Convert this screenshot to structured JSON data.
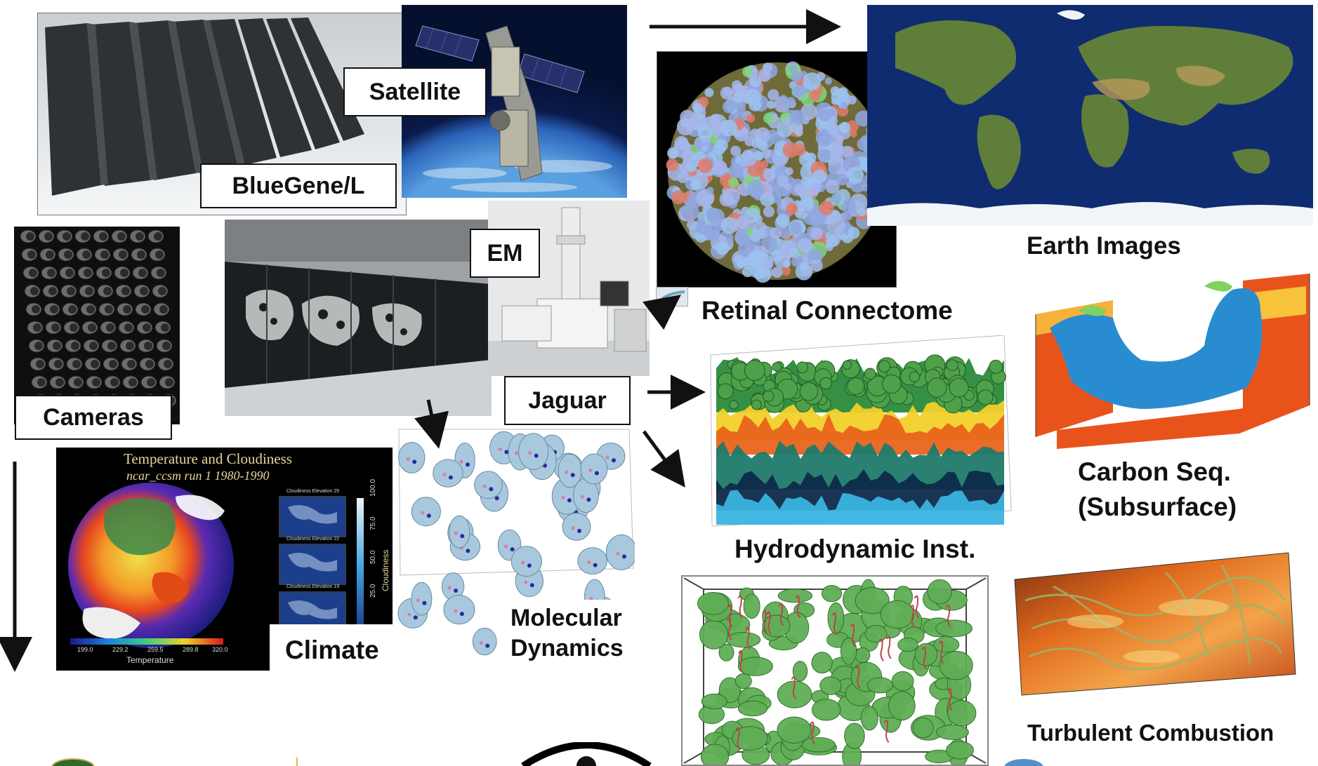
{
  "labels": {
    "bluegene": "BlueGene/L",
    "satellite": "Satellite",
    "em": "EM",
    "cameras": "Cameras",
    "jaguar": "Jaguar",
    "retinal": "Retinal Connectome",
    "earth": "Earth Images",
    "carbon_line1": "Carbon Seq.",
    "carbon_line2": "(Subsurface)",
    "hydro": "Hydrodynamic Inst.",
    "climate": "Climate",
    "molecular_line1": "Molecular",
    "molecular_line2": "Dynamics",
    "turbulent": "Turbulent Combustion"
  },
  "climate_panel": {
    "title": "Temperature and Cloudiness",
    "subtitle": "ncar_ccsm run 1 1980-1990",
    "maps": [
      "Cloudiness Elevation 25",
      "Cloudiness Elevation 22",
      "Cloudiness Elevation 19"
    ],
    "colorbar_ticks": [
      "199.0",
      "229.2",
      "259.5",
      "289.8",
      "320.0"
    ],
    "colorbar_label": "Temperature",
    "cloud_ticks": [
      "100.0",
      "75.0",
      "50.0",
      "25.0"
    ],
    "cloud_label": "Cloudiness"
  },
  "colors": {
    "supercomputer": "#3a3d40",
    "space": "#0a1a4a",
    "ocean": "#0e2a6e",
    "land": "#5e7d3c",
    "fluid_green": "#3f8a3a",
    "flame_orange": "#e06a1c",
    "molecule": "#a8c8de"
  }
}
